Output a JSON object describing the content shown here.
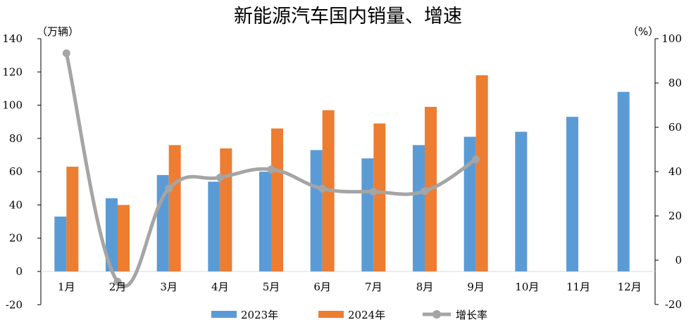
{
  "chart_data": {
    "type": "bar",
    "title": "新能源汽车国内销量、增速",
    "left_axis_unit": "（万辆）",
    "right_axis_unit": "（%）",
    "categories": [
      "1月",
      "2月",
      "3月",
      "4月",
      "5月",
      "6月",
      "7月",
      "8月",
      "9月",
      "10月",
      "11月",
      "12月"
    ],
    "left_axis": {
      "ylim": [
        -20,
        140
      ],
      "ticks": [
        "-20",
        "0",
        "20",
        "40",
        "60",
        "80",
        "100",
        "120",
        "140"
      ],
      "tick_values": [
        -20,
        0,
        20,
        40,
        60,
        80,
        100,
        120,
        140
      ]
    },
    "right_axis": {
      "ylim": [
        -20,
        100
      ],
      "ticks": [
        "-20",
        "0",
        "20",
        "40",
        "60",
        "80",
        "100"
      ],
      "tick_values": [
        -20,
        0,
        20,
        40,
        60,
        80,
        100
      ]
    },
    "negative_tick_color": "#ff0000",
    "series": [
      {
        "name": "2023年",
        "kind": "bar",
        "axis": "left",
        "color": "#5b9bd5",
        "values": [
          33,
          44,
          58,
          54,
          60,
          73,
          68,
          76,
          81,
          84,
          93,
          108
        ]
      },
      {
        "name": "2024年",
        "kind": "bar",
        "axis": "left",
        "color": "#ed7d31",
        "values": [
          63,
          40,
          76,
          74,
          86,
          97,
          89,
          99,
          118,
          null,
          null,
          null
        ]
      },
      {
        "name": "增长率",
        "kind": "line",
        "axis": "right",
        "color": "#a5a5a5",
        "values": [
          93.4,
          -9.7,
          32.3,
          37.3,
          41,
          32.3,
          30.9,
          31.2,
          45.5,
          null,
          null,
          null
        ]
      }
    ],
    "legend_position": "bottom",
    "grid": false
  }
}
